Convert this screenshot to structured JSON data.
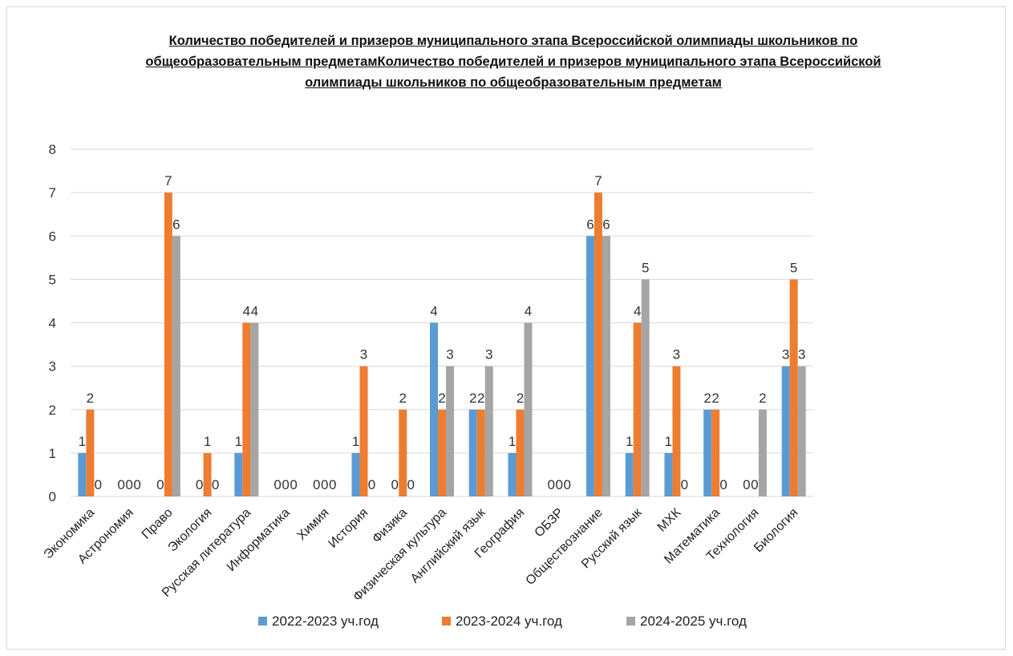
{
  "chart_data": {
    "type": "bar",
    "title": "Количество победителей и призеров муниципального этапа Всероссийской олимпиады школьников по общеобразовательным предметамКоличество победителей и призеров муниципального этапа Всероссийской олимпиады школьников по общеобразовательным предметам",
    "categories": [
      "Экономика",
      "Астрономия",
      "Право",
      "Экология",
      "Русская литература",
      "Информатика",
      "Химия",
      "История",
      "Физика",
      "Физическая культура",
      "Английский язык",
      "География",
      "ОБЗР",
      "Обществознание",
      "Русский язык",
      "МХК",
      "Математика",
      "Технология",
      "Биология"
    ],
    "series": [
      {
        "name": "2022-2023 уч.год",
        "color": "#5b9bd5",
        "values": [
          1,
          0,
          0,
          0,
          1,
          0,
          0,
          1,
          0,
          4,
          2,
          1,
          0,
          6,
          1,
          1,
          2,
          0,
          3
        ]
      },
      {
        "name": "2023-2024 уч.год",
        "color": "#ed7d31",
        "values": [
          2,
          0,
          7,
          1,
          4,
          0,
          0,
          3,
          2,
          2,
          2,
          2,
          0,
          7,
          4,
          3,
          2,
          0,
          5
        ]
      },
      {
        "name": "2024-2025 уч.год",
        "color": "#a5a5a5",
        "values": [
          0,
          0,
          6,
          0,
          4,
          0,
          0,
          0,
          0,
          3,
          3,
          4,
          0,
          6,
          5,
          0,
          0,
          2,
          3
        ]
      }
    ],
    "ylim": [
      0,
      8
    ],
    "yticks": [
      0,
      1,
      2,
      3,
      4,
      5,
      6,
      7,
      8
    ],
    "grid": true,
    "legend_position": "bottom"
  }
}
